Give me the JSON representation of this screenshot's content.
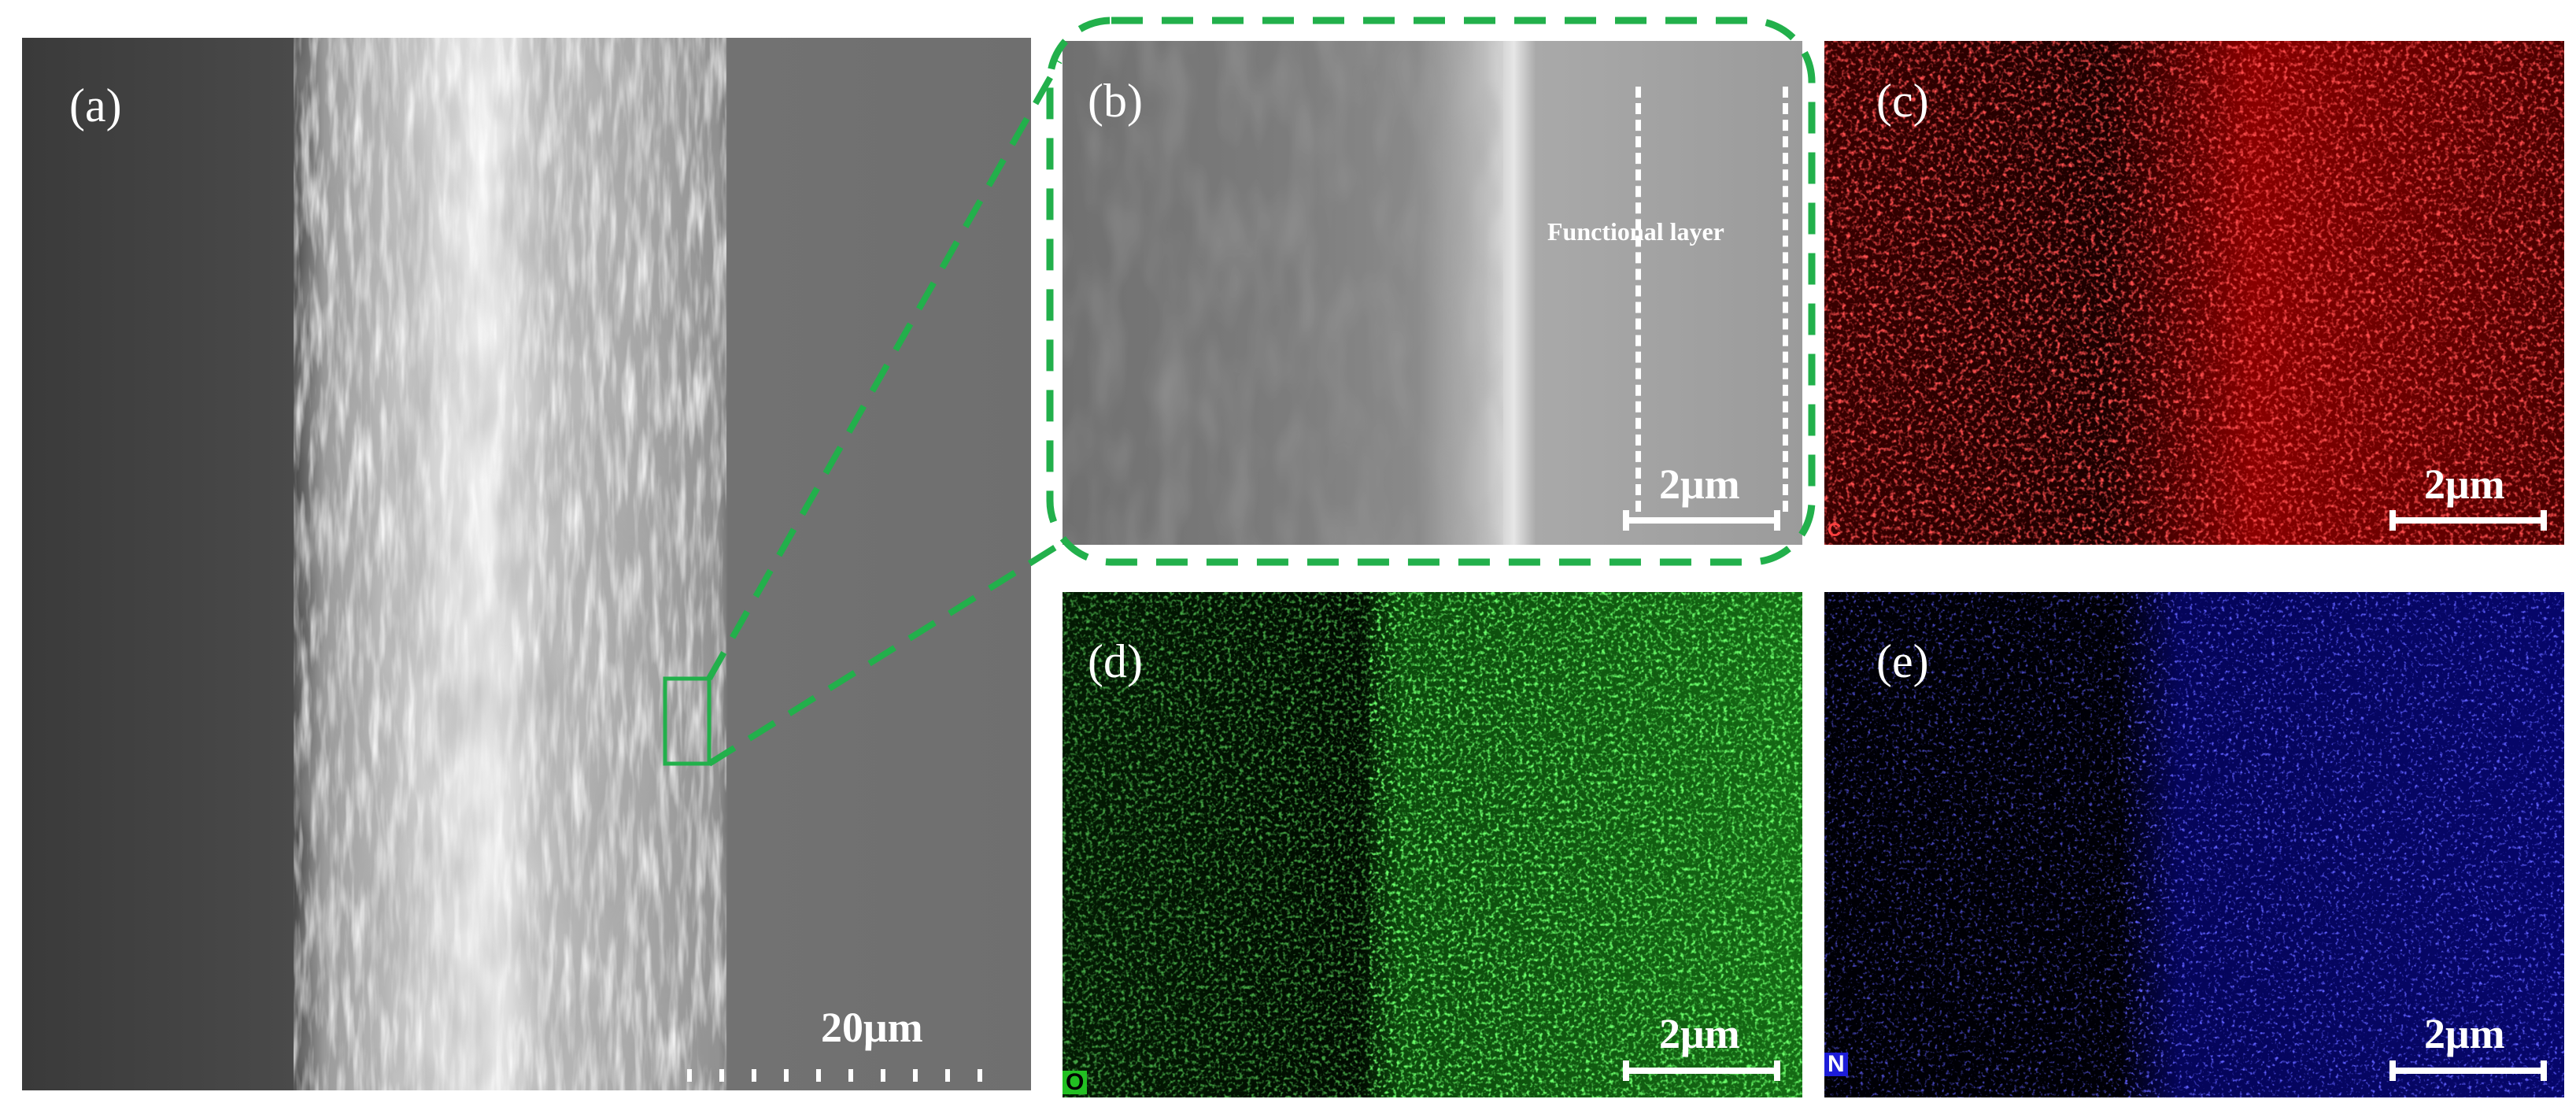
{
  "panels": {
    "a": {
      "label": "(a)",
      "scale_text": "20μm"
    },
    "b": {
      "label": "(b)",
      "scale_text": "2μm",
      "annotation": "Functional layer"
    },
    "c": {
      "label": "(c)",
      "scale_text": "2μm",
      "element_tag": "C"
    },
    "d": {
      "label": "(d)",
      "scale_text": "2μm",
      "element_tag": "O"
    },
    "e": {
      "label": "(e)",
      "scale_text": "2μm",
      "element_tag": "N"
    }
  },
  "colors": {
    "highlight": "#22b04b",
    "map_c": "#ff1a1a",
    "map_o": "#22ff22",
    "map_n": "#2020ff",
    "text": "#ffffff"
  }
}
